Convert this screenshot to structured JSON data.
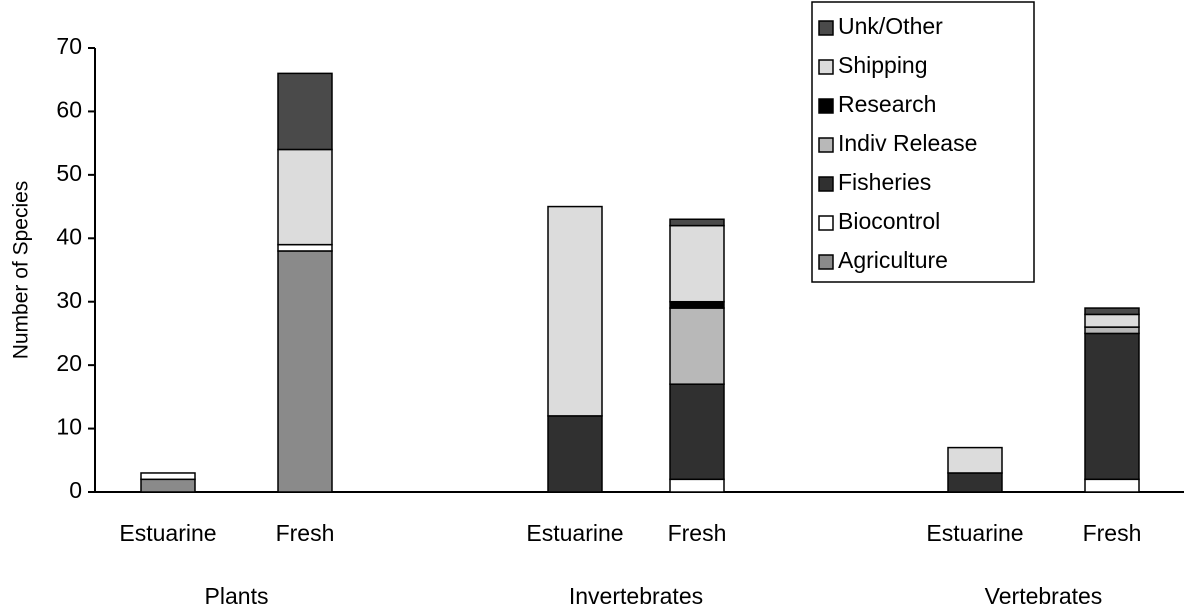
{
  "chart_data": {
    "type": "stacked_bar",
    "y_label": "Number of Species",
    "categories": [
      "Estuarine",
      "Fresh",
      "Estuarine",
      "Fresh",
      "Estuarine",
      "Fresh"
    ],
    "groups": [
      "Plants",
      "Invertebrates",
      "Vertebrates"
    ],
    "series": [
      {
        "name": "Agriculture",
        "color": "#8a8a8a",
        "values": [
          2,
          38,
          0,
          0,
          0,
          0
        ]
      },
      {
        "name": "Biocontrol",
        "color": "#ffffff",
        "values": [
          1,
          1,
          0,
          2,
          0,
          2
        ]
      },
      {
        "name": "Fisheries",
        "color": "#303030",
        "values": [
          0,
          0,
          12,
          15,
          3,
          23
        ]
      },
      {
        "name": "Indiv Release",
        "color": "#b8b8b8",
        "values": [
          0,
          0,
          0,
          12,
          0,
          1
        ]
      },
      {
        "name": "Research",
        "color": "#000000",
        "values": [
          0,
          0,
          0,
          1,
          0,
          0
        ]
      },
      {
        "name": "Shipping",
        "color": "#dcdcdc",
        "values": [
          0,
          15,
          33,
          12,
          4,
          2
        ]
      },
      {
        "name": "Unk/Other",
        "color": "#4a4a4a",
        "values": [
          0,
          12,
          0,
          1,
          0,
          1
        ]
      }
    ],
    "ylim": [
      0,
      70
    ],
    "yticks": [
      0,
      10,
      20,
      30,
      40,
      50,
      60,
      70
    ]
  }
}
